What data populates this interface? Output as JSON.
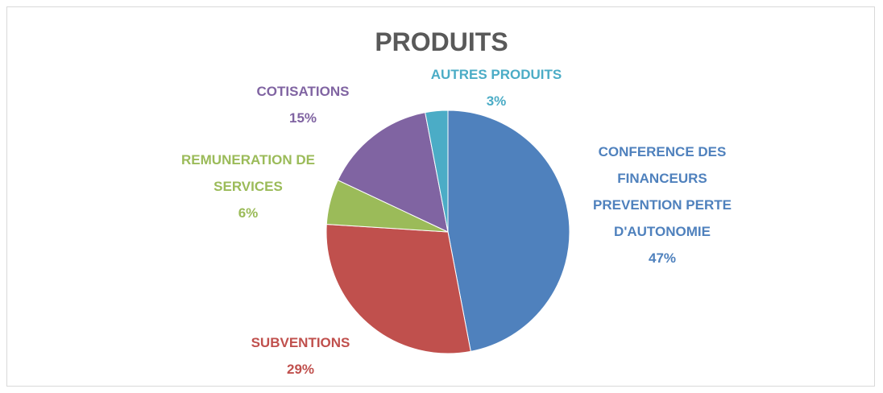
{
  "chart_data": {
    "type": "pie",
    "title": "PRODUITS",
    "categories": [
      "CONFERENCE DES FINANCEURS PREVENTION PERTE D'AUTONOMIE",
      "SUBVENTIONS",
      "REMUNERATION DE SERVICES",
      "COTISATIONS",
      "AUTRES PRODUITS"
    ],
    "values": [
      47,
      29,
      6,
      15,
      3
    ],
    "value_labels": [
      "47%",
      "29%",
      "6%",
      "15%",
      "3%"
    ],
    "colors": [
      "#4f81bd",
      "#c0504d",
      "#9bbb59",
      "#8064a2",
      "#4bacc6"
    ]
  }
}
